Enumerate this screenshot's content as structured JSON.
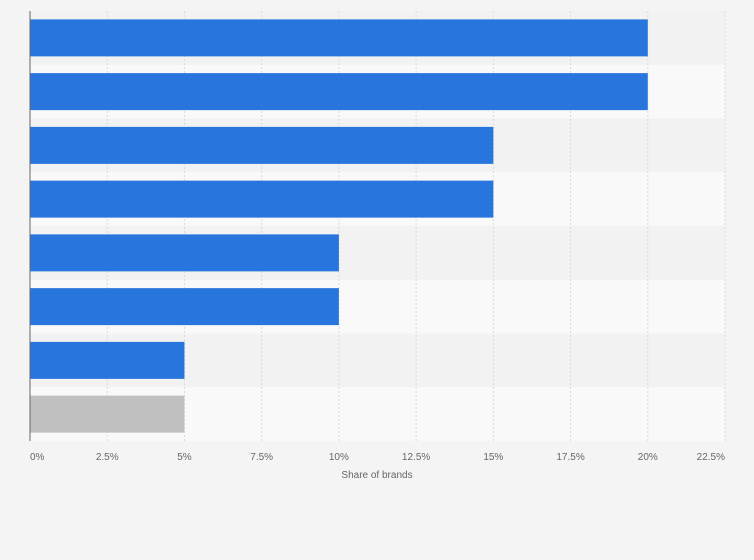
{
  "chart_data": {
    "type": "bar",
    "orientation": "horizontal",
    "categories": [
      "",
      "",
      "",
      "",
      "",
      "",
      "",
      ""
    ],
    "values": [
      20,
      20,
      15,
      15,
      10,
      10,
      5,
      5
    ],
    "bar_colors": [
      "#2876dd",
      "#2876dd",
      "#2876dd",
      "#2876dd",
      "#2876dd",
      "#2876dd",
      "#2876dd",
      "#c0c0c0"
    ],
    "xlabel": "Share of brands",
    "ylabel": "",
    "xlim": [
      0,
      22.5
    ],
    "x_ticks": [
      "0%",
      "2.5%",
      "5%",
      "7.5%",
      "10%",
      "12.5%",
      "15%",
      "17.5%",
      "20%",
      "22.5%"
    ],
    "grid": true,
    "legend": false,
    "colors": {
      "primary_bar": "#2876dd",
      "highlight_bar": "#c0c0c0",
      "band_even": "#f2f2f2",
      "band_odd": "#f9f9f9",
      "grid": "#d9d9d9",
      "text": "#666666"
    }
  }
}
